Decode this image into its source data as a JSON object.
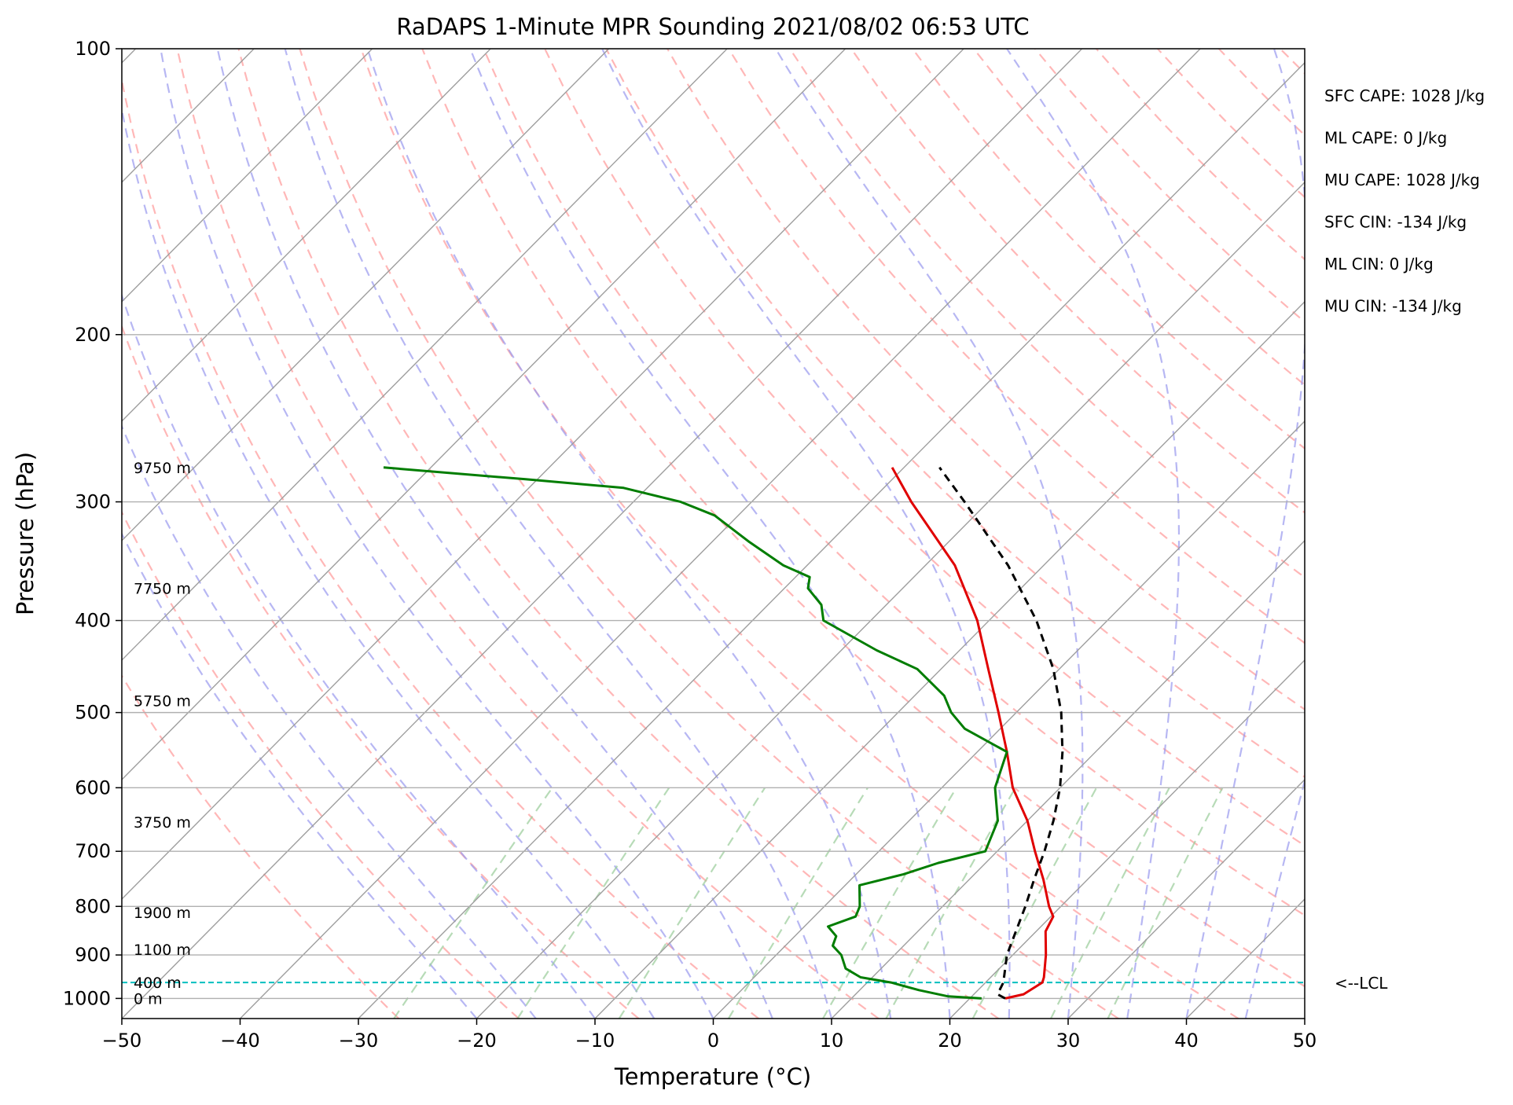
{
  "chart_data": {
    "type": "line",
    "title": "RaDAPS 1-Minute MPR Sounding 2021/08/02 06:53 UTC",
    "xlabel": "Temperature (°C)",
    "ylabel": "Pressure (hPa)",
    "xlim": [
      -50,
      50
    ],
    "ylim": [
      1050,
      100
    ],
    "yscale": "log",
    "skew": true,
    "grid": true,
    "x_ticks": [
      "−50",
      "−40",
      "−30",
      "−20",
      "−10",
      "0",
      "10",
      "20",
      "30",
      "40",
      "50"
    ],
    "y_ticks": [
      "100",
      "200",
      "300",
      "400",
      "500",
      "600",
      "700",
      "800",
      "900",
      "1000"
    ],
    "background_lines": {
      "isotherms_color": "#9e9e9e",
      "dry_adiabats_color": "#ff9999",
      "moist_adiabats_color": "#9999ee",
      "mixing_ratio_color": "#99cc99"
    },
    "height_labels": [
      {
        "text": "9750 m",
        "pressure": 276
      },
      {
        "text": "7750 m",
        "pressure": 370
      },
      {
        "text": "5750 m",
        "pressure": 486
      },
      {
        "text": "3750 m",
        "pressure": 652
      },
      {
        "text": "1900 m",
        "pressure": 812
      },
      {
        "text": "1100 m",
        "pressure": 888
      },
      {
        "text": "400 m",
        "pressure": 962
      },
      {
        "text": "0 m",
        "pressure": 1000
      }
    ],
    "indices": [
      "SFC CAPE: 1028 J/kg",
      "ML CAPE: 0 J/kg",
      "MU CAPE: 1028 J/kg",
      "SFC CIN: -134 J/kg",
      "ML CIN: 0 J/kg",
      "MU CIN: -134 J/kg"
    ],
    "lcl": {
      "label": "<--LCL",
      "pressure": 962,
      "color": "#00bfbf"
    },
    "series": [
      {
        "color": "#e00000",
        "points": [
          [
            1000,
            23.0
          ],
          [
            990,
            24.2
          ],
          [
            962,
            24.8
          ],
          [
            950,
            24.5
          ],
          [
            900,
            22.8
          ],
          [
            850,
            20.8
          ],
          [
            820,
            20.2
          ],
          [
            800,
            19.0
          ],
          [
            750,
            16.3
          ],
          [
            700,
            13.2
          ],
          [
            650,
            10.0
          ],
          [
            600,
            6.0
          ],
          [
            550,
            2.5
          ],
          [
            500,
            -1.5
          ],
          [
            450,
            -6.0
          ],
          [
            400,
            -11.0
          ],
          [
            350,
            -17.5
          ],
          [
            300,
            -26.5
          ],
          [
            276,
            -31.0
          ]
        ]
      },
      {
        "color": "#007d00",
        "points": [
          [
            1000,
            21.0
          ],
          [
            995,
            18.0
          ],
          [
            980,
            15.0
          ],
          [
            962,
            12.0
          ],
          [
            950,
            9.0
          ],
          [
            930,
            7.0
          ],
          [
            900,
            5.5
          ],
          [
            880,
            4.0
          ],
          [
            860,
            3.5
          ],
          [
            840,
            2.0
          ],
          [
            820,
            3.5
          ],
          [
            800,
            3.0
          ],
          [
            760,
            1.2
          ],
          [
            740,
            4.0
          ],
          [
            720,
            6.0
          ],
          [
            700,
            9.0
          ],
          [
            650,
            7.5
          ],
          [
            600,
            4.5
          ],
          [
            550,
            2.5
          ],
          [
            520,
            -3.0
          ],
          [
            500,
            -5.5
          ],
          [
            480,
            -7.5
          ],
          [
            450,
            -12.0
          ],
          [
            430,
            -17.0
          ],
          [
            400,
            -24.0
          ],
          [
            385,
            -25.5
          ],
          [
            370,
            -28.0
          ],
          [
            360,
            -28.8
          ],
          [
            350,
            -32.0
          ],
          [
            330,
            -37.0
          ],
          [
            310,
            -42.0
          ],
          [
            300,
            -46.0
          ],
          [
            290,
            -52.0
          ],
          [
            284,
            -61.0
          ],
          [
            276,
            -74.0
          ]
        ]
      },
      {
        "color": "#000000",
        "dashed": true,
        "points": [
          [
            1000,
            23.0
          ],
          [
            990,
            22.0
          ],
          [
            962,
            21.5
          ],
          [
            900,
            19.5
          ],
          [
            800,
            17.0
          ],
          [
            750,
            15.5
          ],
          [
            700,
            14.0
          ],
          [
            650,
            12.2
          ],
          [
            600,
            10.0
          ],
          [
            550,
            7.2
          ],
          [
            500,
            3.8
          ],
          [
            450,
            -0.5
          ],
          [
            400,
            -6.0
          ],
          [
            350,
            -13.0
          ],
          [
            300,
            -22.0
          ],
          [
            276,
            -27.0
          ]
        ]
      }
    ]
  }
}
